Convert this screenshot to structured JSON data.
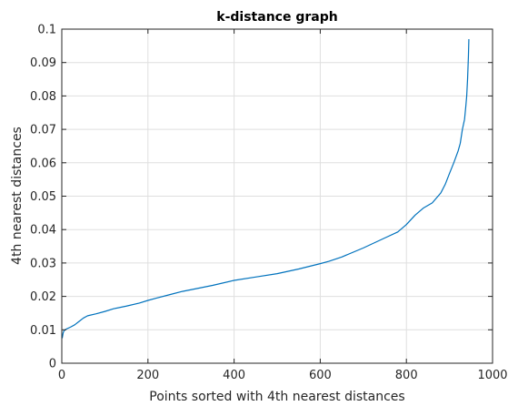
{
  "chart_data": {
    "type": "line",
    "title": "k-distance graph",
    "xlabel": "Points sorted with 4th nearest distances",
    "ylabel": "4th nearest distances",
    "xlim": [
      0,
      1000
    ],
    "ylim": [
      0,
      0.1
    ],
    "xticks": [
      0,
      200,
      400,
      600,
      800,
      1000
    ],
    "xtick_labels": [
      "0",
      "200",
      "400",
      "600",
      "800",
      "1000"
    ],
    "yticks": [
      0,
      0.01,
      0.02,
      0.03,
      0.04,
      0.05,
      0.06,
      0.07,
      0.08,
      0.09,
      0.1
    ],
    "ytick_labels": [
      "0",
      "0.01",
      "0.02",
      "0.03",
      "0.04",
      "0.05",
      "0.06",
      "0.07",
      "0.08",
      "0.09",
      "0.1"
    ],
    "grid": true,
    "series": [
      {
        "color": "#0072bd",
        "x": [
          1,
          3,
          5,
          10,
          20,
          30,
          40,
          50,
          60,
          80,
          100,
          120,
          150,
          180,
          200,
          220,
          250,
          280,
          300,
          350,
          400,
          450,
          500,
          550,
          600,
          620,
          650,
          700,
          750,
          780,
          800,
          820,
          840,
          860,
          870,
          880,
          890,
          900,
          910,
          920,
          925,
          930,
          935,
          938,
          940,
          942,
          944,
          945
        ],
        "y": [
          0.0075,
          0.009,
          0.0097,
          0.0102,
          0.0108,
          0.0115,
          0.0125,
          0.0135,
          0.0142,
          0.0148,
          0.0155,
          0.0163,
          0.0171,
          0.018,
          0.0188,
          0.0195,
          0.0205,
          0.0215,
          0.022,
          0.0233,
          0.0248,
          0.0258,
          0.0268,
          0.0282,
          0.0298,
          0.0305,
          0.0318,
          0.0345,
          0.0375,
          0.0393,
          0.0415,
          0.0443,
          0.0465,
          0.048,
          0.0495,
          0.051,
          0.0535,
          0.0568,
          0.06,
          0.0635,
          0.0658,
          0.07,
          0.073,
          0.077,
          0.08,
          0.085,
          0.092,
          0.097
        ]
      }
    ]
  }
}
